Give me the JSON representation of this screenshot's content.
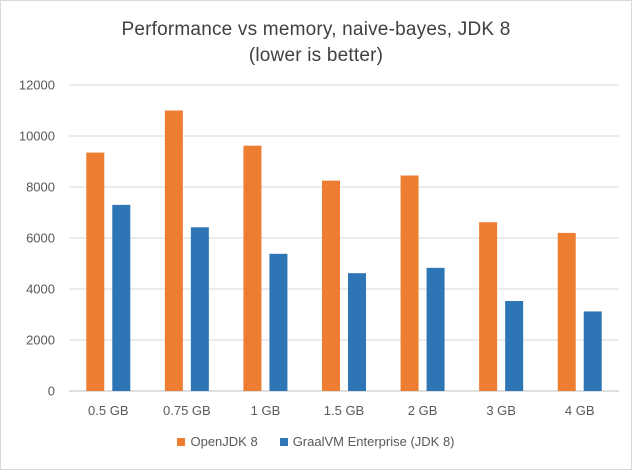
{
  "chart_data": {
    "type": "bar",
    "title": "Performance vs memory, naive-bayes, JDK 8",
    "subtitle": "(lower is better)",
    "categories": [
      "0.5 GB",
      "0.75 GB",
      "1 GB",
      "1.5 GB",
      "2 GB",
      "3 GB",
      "4 GB"
    ],
    "series": [
      {
        "name": "OpenJDK 8",
        "color": "#ed7d31",
        "values": [
          9350,
          11000,
          9620,
          8250,
          8450,
          6620,
          6200
        ]
      },
      {
        "name": "GraalVM Enterprise (JDK 8)",
        "color": "#2e75b6",
        "values": [
          7300,
          6420,
          5380,
          4620,
          4830,
          3530,
          3120
        ]
      }
    ],
    "ylim": [
      0,
      12000
    ],
    "yticks": [
      0,
      2000,
      4000,
      6000,
      8000,
      10000,
      12000
    ],
    "grid": true,
    "legend_position": "bottom",
    "xlabel": "",
    "ylabel": ""
  }
}
